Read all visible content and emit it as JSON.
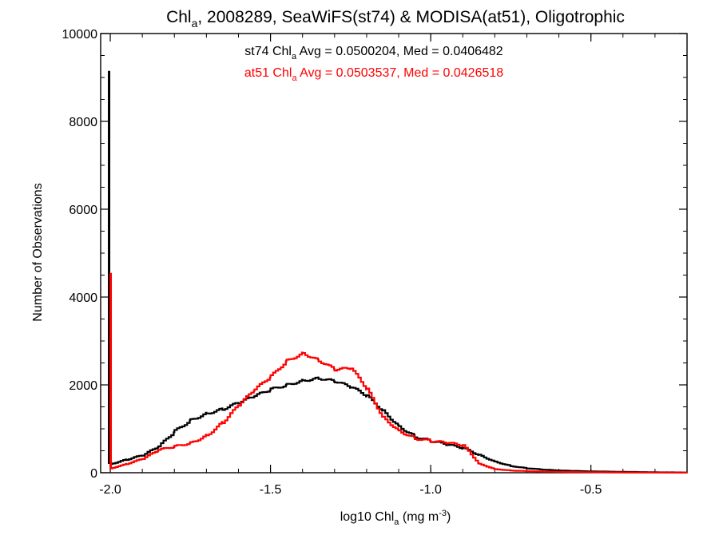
{
  "chart_data": {
    "type": "step-line",
    "title": {
      "prefix": "Chl",
      "subscript": "a",
      "suffix": ", 2008289, SeaWiFS(st74) & MODISA(at51), Oligotrophic"
    },
    "xlabel": {
      "prefix": "log10 Chl",
      "subscript": "a",
      "middle": " (mg m",
      "superscript": "-3",
      "suffix": ")"
    },
    "ylabel": "Number of Observations",
    "xlim": [
      -2.03,
      -0.2
    ],
    "ylim": [
      0,
      10000
    ],
    "xticks": [
      {
        "value": -2.0,
        "label": "-2.0"
      },
      {
        "value": -1.5,
        "label": "-1.5"
      },
      {
        "value": -1.0,
        "label": "-1.0"
      },
      {
        "value": -0.5,
        "label": "-0.5"
      }
    ],
    "yticks": [
      {
        "value": 0,
        "label": "0"
      },
      {
        "value": 2000,
        "label": "2000"
      },
      {
        "value": 4000,
        "label": "4000"
      },
      {
        "value": 6000,
        "label": "6000"
      },
      {
        "value": 8000,
        "label": "8000"
      },
      {
        "value": 10000,
        "label": "10000"
      }
    ],
    "annotations": [
      {
        "series": "st74",
        "text_prefix": "st74 Chl",
        "subscript": "a",
        "text_suffix": " Avg = 0.0500204, Med = 0.0406482",
        "color": "#000000"
      },
      {
        "series": "at51",
        "text_prefix": "at51 Chl",
        "subscript": "a",
        "text_suffix": " Avg = 0.0503537, Med = 0.0426518",
        "color": "#ff0000"
      }
    ],
    "series": [
      {
        "name": "st74",
        "color": "#000000",
        "spike": {
          "x": -2.0,
          "y": 9150
        },
        "x": [
          -2.0,
          -1.95,
          -1.9,
          -1.85,
          -1.8,
          -1.75,
          -1.7,
          -1.65,
          -1.6,
          -1.55,
          -1.5,
          -1.45,
          -1.4,
          -1.35,
          -1.3,
          -1.25,
          -1.2,
          -1.15,
          -1.1,
          -1.05,
          -1.0,
          -0.95,
          -0.9,
          -0.85,
          -0.8,
          -0.75,
          -0.7,
          -0.65,
          -0.6,
          -0.55,
          -0.5,
          -0.45,
          -0.4,
          -0.35,
          -0.3,
          -0.25,
          -0.2
        ],
        "y": [
          200,
          300,
          400,
          600,
          950,
          1200,
          1350,
          1450,
          1600,
          1750,
          1900,
          2000,
          2100,
          2150,
          2080,
          1950,
          1750,
          1400,
          1050,
          820,
          720,
          640,
          560,
          400,
          250,
          150,
          100,
          70,
          50,
          40,
          30,
          25,
          20,
          15,
          10,
          8,
          5
        ]
      },
      {
        "name": "at51",
        "color": "#ff0000",
        "spike": {
          "x": -2.0,
          "y": 4550
        },
        "x": [
          -2.0,
          -1.95,
          -1.9,
          -1.85,
          -1.8,
          -1.75,
          -1.7,
          -1.65,
          -1.6,
          -1.55,
          -1.5,
          -1.45,
          -1.4,
          -1.35,
          -1.3,
          -1.25,
          -1.2,
          -1.15,
          -1.1,
          -1.05,
          -1.0,
          -0.95,
          -0.9,
          -0.85,
          -0.8,
          -0.75,
          -0.7,
          -0.65,
          -0.6,
          -0.55,
          -0.5,
          -0.45,
          -0.4,
          -0.35,
          -0.3,
          -0.25,
          -0.2
        ],
        "y": [
          100,
          200,
          320,
          520,
          600,
          680,
          850,
          1150,
          1550,
          1900,
          2200,
          2550,
          2720,
          2550,
          2350,
          2380,
          1900,
          1250,
          950,
          780,
          720,
          680,
          620,
          200,
          80,
          50,
          35,
          25,
          20,
          15,
          12,
          10,
          8,
          6,
          5,
          4,
          3
        ]
      }
    ]
  }
}
